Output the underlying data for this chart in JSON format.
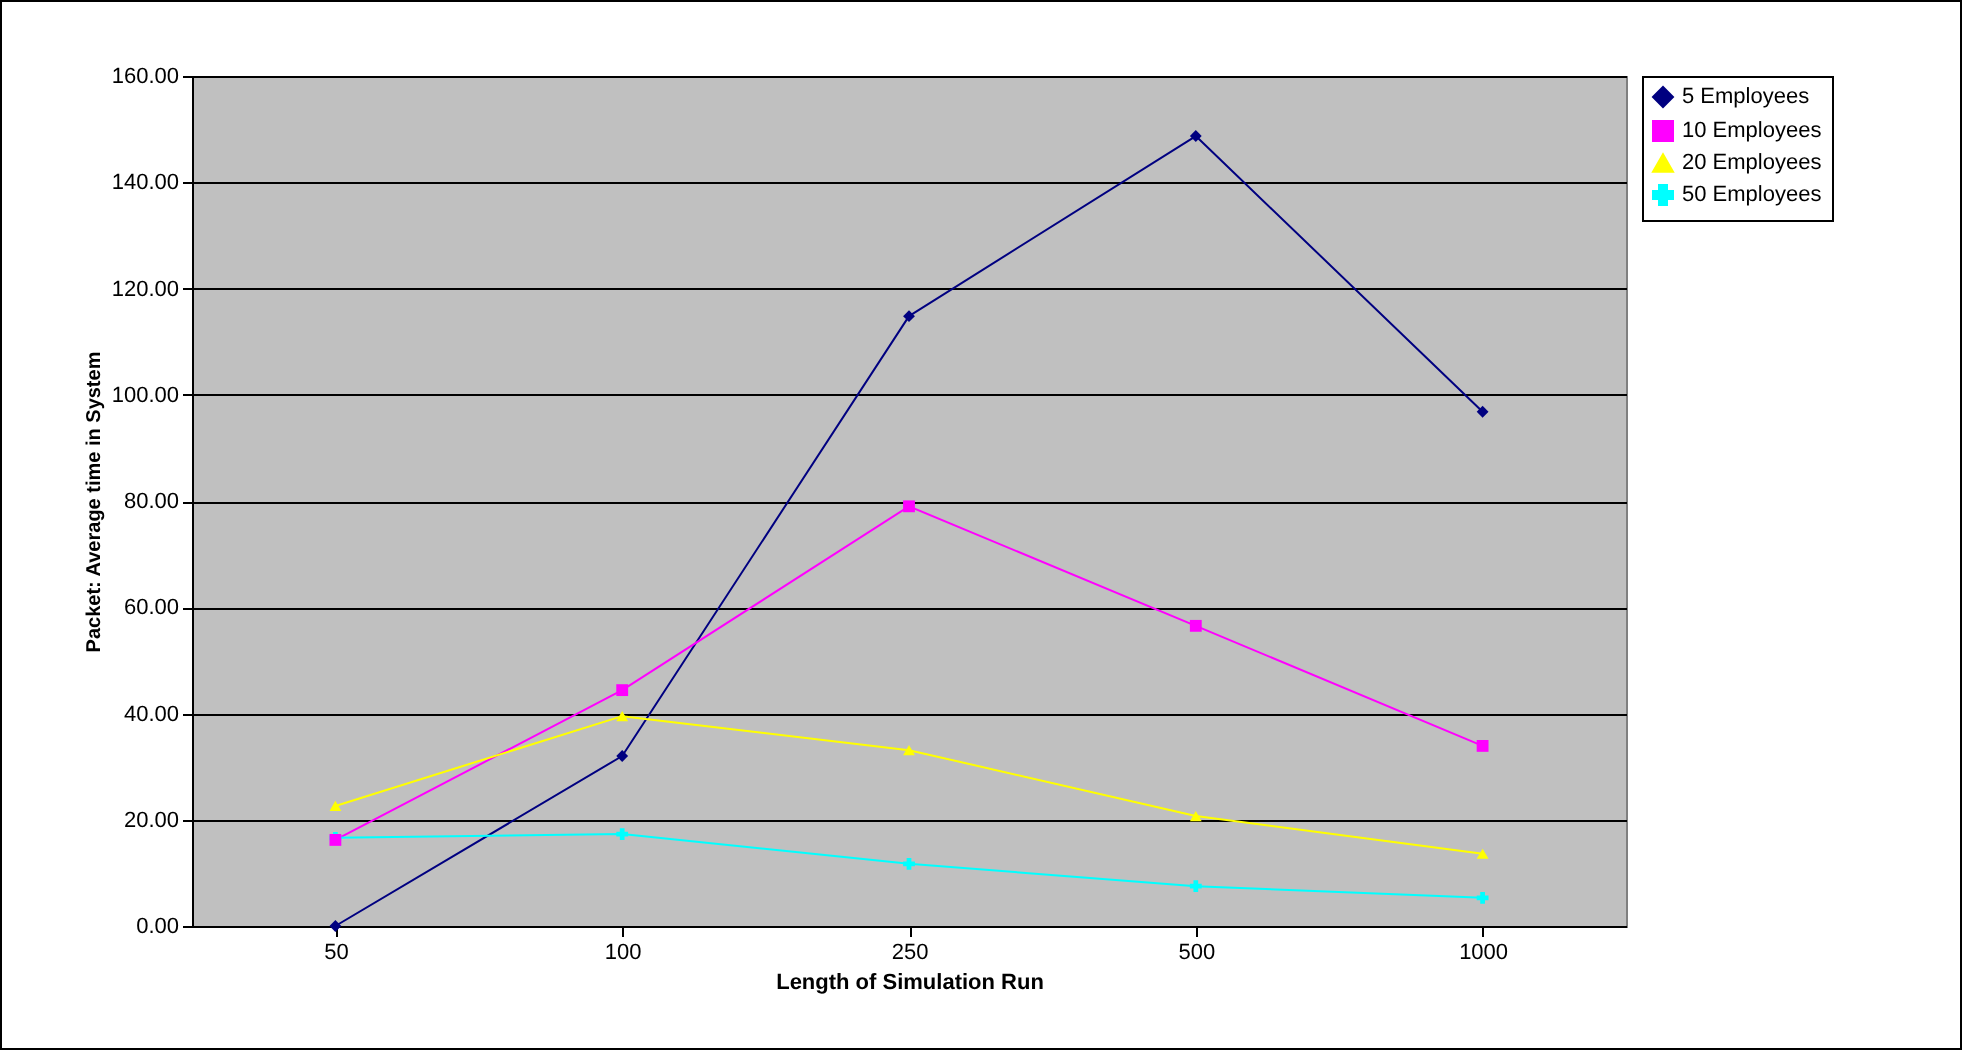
{
  "chart_data": {
    "type": "line",
    "xlabel": "Length of Simulation Run",
    "ylabel": "Packet: Average time in System",
    "categories": [
      "50",
      "100",
      "250",
      "500",
      "1000"
    ],
    "ylim": [
      0,
      160
    ],
    "yticks": [
      {
        "value": 0,
        "label": "0.00"
      },
      {
        "value": 20,
        "label": "20.00"
      },
      {
        "value": 40,
        "label": "40.00"
      },
      {
        "value": 60,
        "label": "60.00"
      },
      {
        "value": 80,
        "label": "80.00"
      },
      {
        "value": 100,
        "label": "100.00"
      },
      {
        "value": 120,
        "label": "120.00"
      },
      {
        "value": 140,
        "label": "140.00"
      },
      {
        "value": 160,
        "label": "160.00"
      }
    ],
    "grid": "y",
    "legend": "right",
    "series": [
      {
        "name": "5 Employees",
        "color": "#000080",
        "marker": "diamond",
        "values": [
          0,
          32,
          114.8,
          148.7,
          96.8
        ]
      },
      {
        "name": "10 Employees",
        "color": "#ff00ff",
        "marker": "square",
        "values": [
          16.2,
          44.4,
          79,
          56.5,
          33.9
        ]
      },
      {
        "name": "20 Employees",
        "color": "#ffff00",
        "marker": "triangle",
        "values": [
          22.6,
          39.5,
          33.1,
          20.7,
          13.6
        ]
      },
      {
        "name": "50 Employees",
        "color": "#00ffff",
        "marker": "cross",
        "values": [
          16.6,
          17.3,
          11.7,
          7.5,
          5.3
        ]
      }
    ]
  }
}
